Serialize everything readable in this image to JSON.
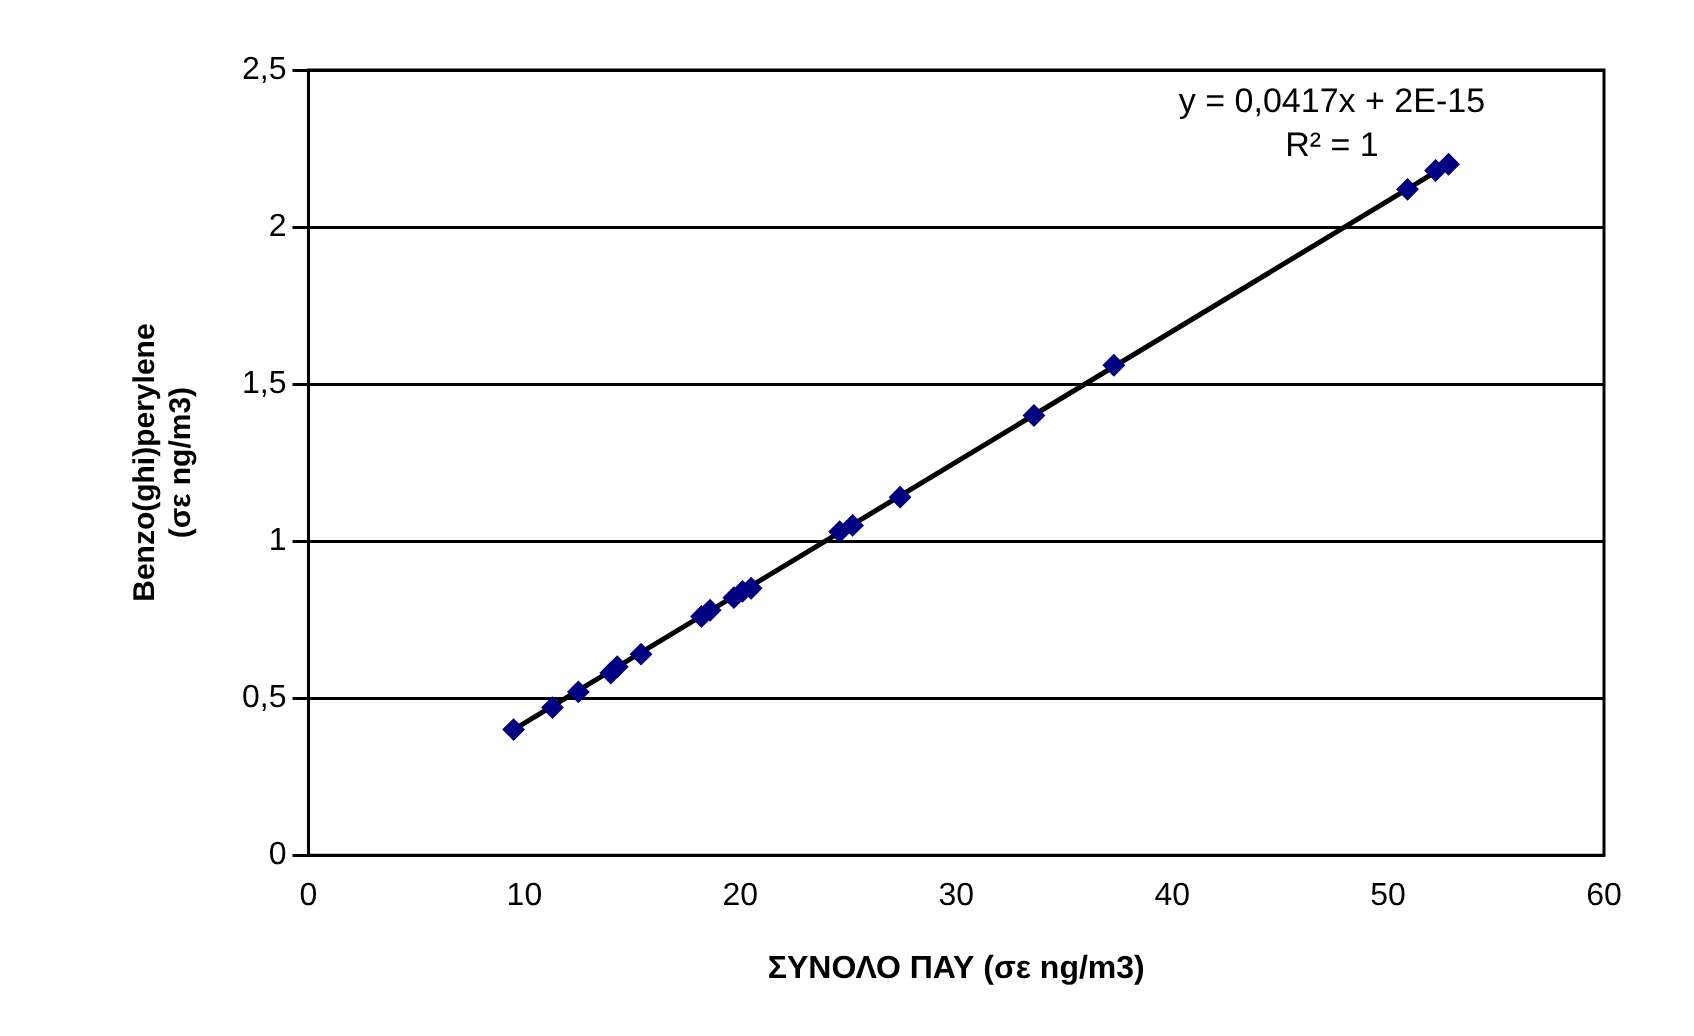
{
  "chart_data": {
    "type": "scatter",
    "xlabel": "ΣΥΝΟΛΟ ΠΑΥ (σε ng/m3)",
    "ylabel": "Benzo(ghi)perylene\n(σε ng/m3)",
    "annotations": [
      "y = 0,0417x + 2E-15",
      "R² = 1"
    ],
    "xlim": [
      0,
      60
    ],
    "xticks": [
      0,
      10,
      20,
      30,
      40,
      50,
      60
    ],
    "ylim": [
      0,
      2.5
    ],
    "yticks": [
      0,
      {
        "value": 0.5,
        "label": "0,5"
      },
      1,
      {
        "value": 1.5,
        "label": "1,5"
      },
      2,
      {
        "value": 2.5,
        "label": "2,5"
      }
    ],
    "grid": "y",
    "legend": false,
    "marker": "diamond",
    "series": [
      {
        "color": "#000080",
        "x": [
          9.5,
          11.3,
          12.5,
          14.0,
          14.3,
          15.4,
          18.2,
          18.6,
          19.7,
          20.1,
          20.5,
          24.6,
          25.2,
          27.4,
          33.6,
          37.3,
          50.9,
          52.2,
          52.8
        ],
        "values": [
          0.4,
          0.47,
          0.52,
          0.58,
          0.6,
          0.64,
          0.76,
          0.78,
          0.82,
          0.84,
          0.85,
          1.03,
          1.05,
          1.14,
          1.4,
          1.56,
          2.12,
          2.18,
          2.2
        ]
      },
      {
        "type": "line",
        "marker": "none",
        "color": "#000000",
        "x": [
          9.5,
          52.8
        ],
        "values": [
          0.4,
          2.2
        ]
      }
    ]
  }
}
